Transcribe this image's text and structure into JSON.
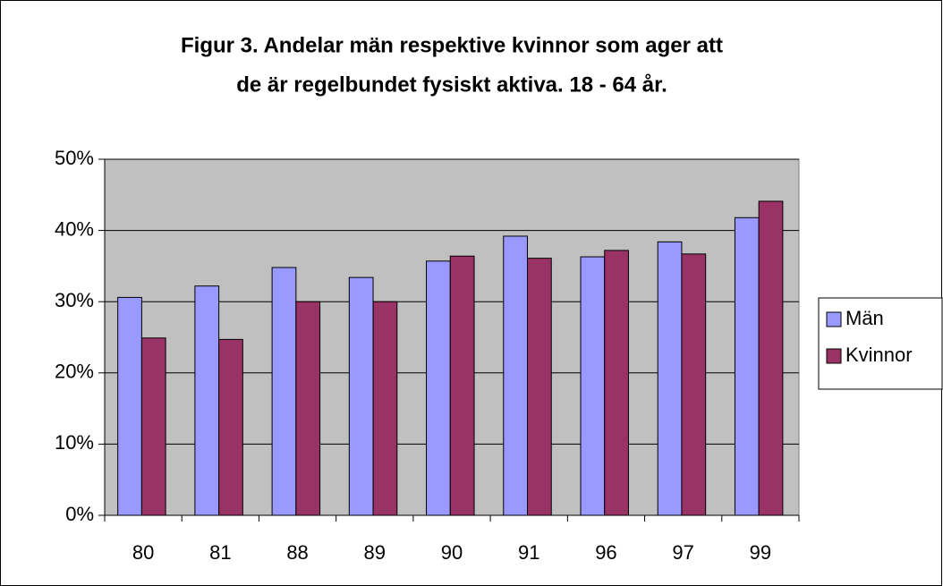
{
  "chart_data": {
    "type": "bar",
    "title": [
      "Figur 3. Andelar män respektive kvinnor som ager att",
      "de är regelbundet fysiskt aktiva. 18 - 64 år."
    ],
    "categories": [
      "80",
      "81",
      "88",
      "89",
      "90",
      "91",
      "96",
      "97",
      "99"
    ],
    "series": [
      {
        "name": "Män",
        "color": "#9999ff",
        "values": [
          30.6,
          32.2,
          34.8,
          33.4,
          35.7,
          39.2,
          36.3,
          38.4,
          41.8
        ]
      },
      {
        "name": "Kvinnor",
        "color": "#993366",
        "values": [
          24.9,
          24.7,
          30,
          30,
          36.4,
          36.1,
          37.2,
          36.7,
          44.1
        ]
      }
    ],
    "ylim": [
      0,
      50
    ],
    "yticks": [
      {
        "value": 0,
        "label": "0%"
      },
      {
        "value": 10,
        "label": "10%"
      },
      {
        "value": 20,
        "label": "20%"
      },
      {
        "value": 30,
        "label": "30%"
      },
      {
        "value": 40,
        "label": "40%"
      },
      {
        "value": 50,
        "label": "50%"
      }
    ],
    "grid": true,
    "legend": "right"
  }
}
